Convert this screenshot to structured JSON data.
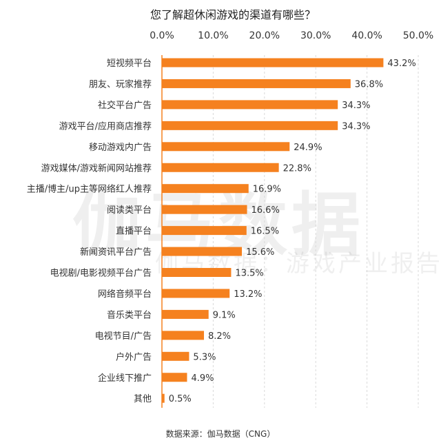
{
  "chart_data": {
    "type": "bar",
    "orientation": "horizontal",
    "title": "您了解超休闲游戏的渠道有哪些？",
    "categories": [
      "短视频平台",
      "朋友、玩家推荐",
      "社交平台广告",
      "游戏平台/应用商店推荐",
      "移动游戏内广告",
      "游戏媒体/游戏新闻网站推荐",
      "主播/博主/up主等网络红人推荐",
      "阅读类平台",
      "直播平台",
      "新闻资讯平台广告",
      "电视剧/电影视频平台广告",
      "网络音频平台",
      "音乐类平台",
      "电视节目/广告",
      "户外广告",
      "企业线下推广",
      "其他"
    ],
    "values": [
      43.2,
      36.8,
      34.3,
      34.3,
      24.9,
      22.8,
      16.9,
      16.6,
      16.5,
      15.6,
      13.5,
      13.2,
      9.1,
      8.2,
      5.3,
      4.9,
      0.5
    ],
    "value_labels": [
      "43.2%",
      "36.8%",
      "34.3%",
      "34.3%",
      "24.9%",
      "22.8%",
      "16.9%",
      "16.6%",
      "16.5%",
      "15.6%",
      "13.5%",
      "13.2%",
      "9.1%",
      "8.2%",
      "5.3%",
      "4.9%",
      "0.5%"
    ],
    "x_ticks": [
      0,
      10,
      20,
      30,
      40,
      50
    ],
    "x_tick_labels": [
      "0.0%",
      "10.0%",
      "20.0%",
      "30.0%",
      "40.0%",
      "50.0%"
    ],
    "xlim": [
      0,
      50
    ],
    "axis_position": "top",
    "grid": true,
    "legend": "none",
    "color": "#f5811f"
  },
  "source": "数据来源：伽马数据（CNG）",
  "watermark": {
    "main": "伽马数据",
    "sub": "伽马数据：游戏产业报告"
  }
}
